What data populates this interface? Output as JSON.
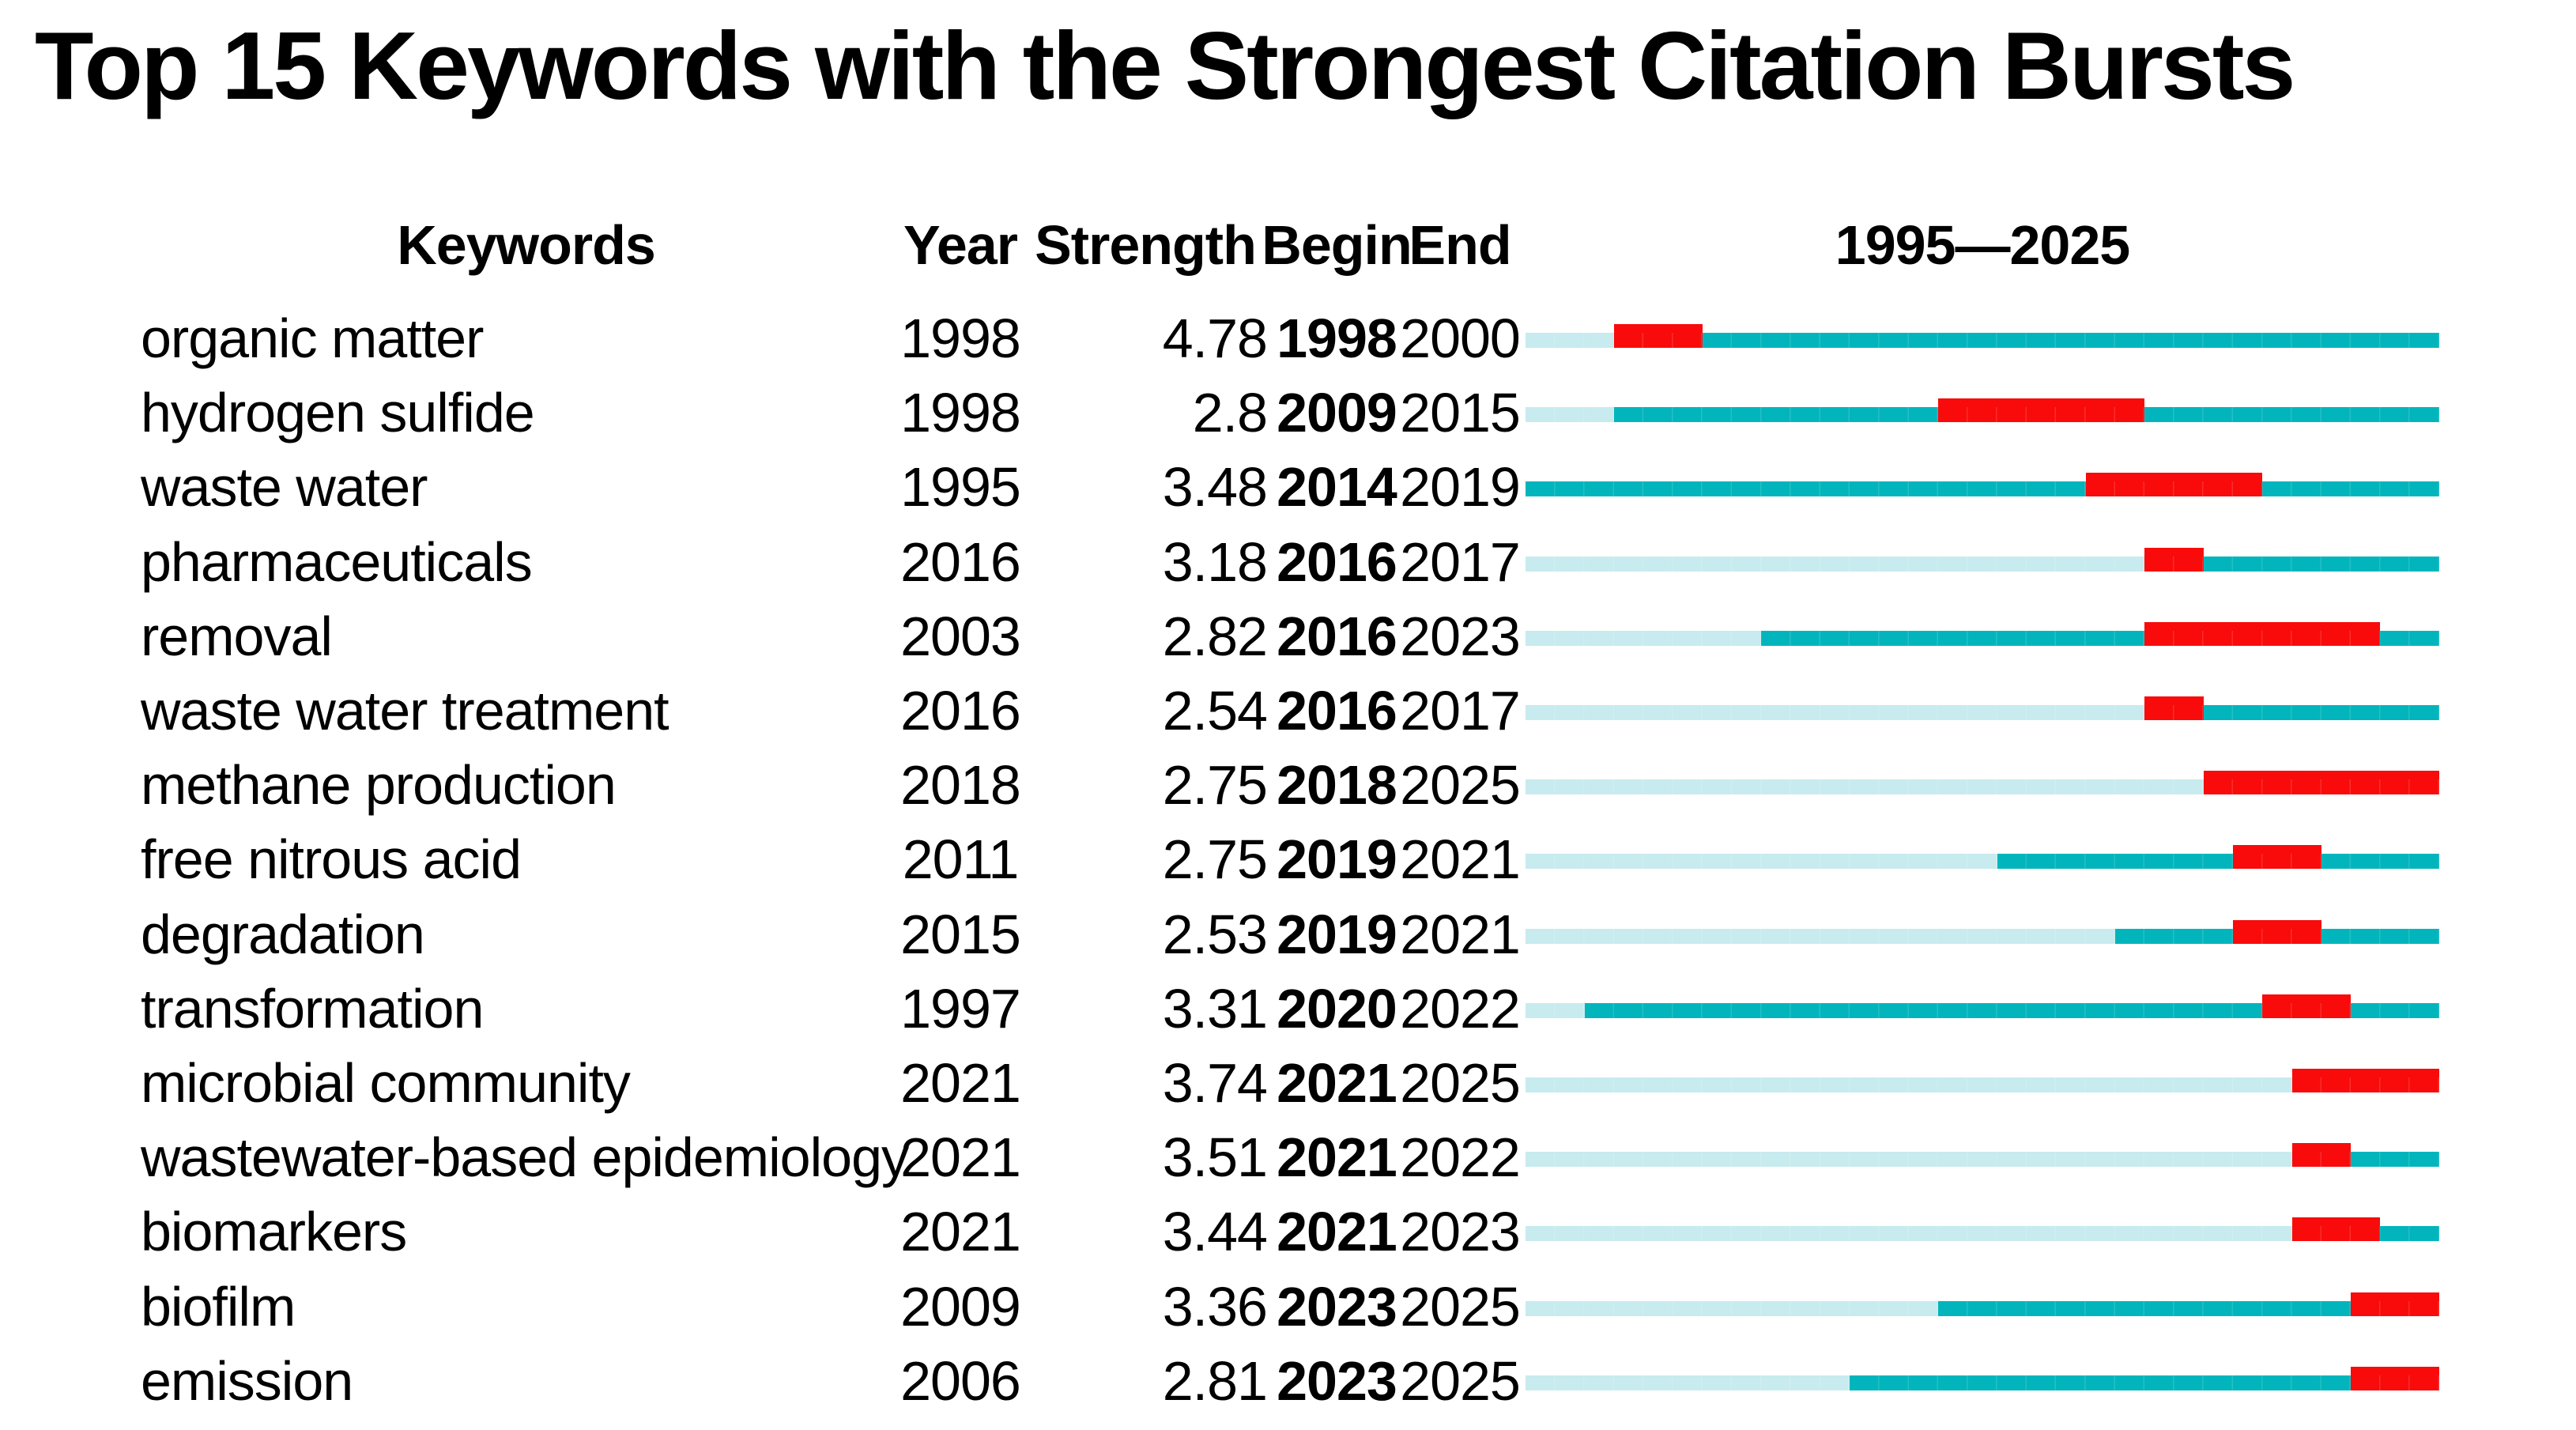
{
  "title": "Top 15 Keywords with the Strongest Citation Bursts",
  "columns": {
    "keyword": "Keywords",
    "year": "Year",
    "strength": "Strength",
    "begin": "Begin",
    "end": "End",
    "timeline": "1995—2025"
  },
  "chart_data": {
    "type": "bar",
    "subtype": "citation-burst-timeline",
    "x_range": [
      1995,
      2025
    ],
    "legend": {
      "pre_appearance_color": "#c7ebee",
      "active_color": "#02b5bc",
      "burst_color": "#f90b0b"
    },
    "rows": [
      {
        "keyword": "organic matter",
        "year": 1998,
        "strength": "4.78",
        "begin": 1998,
        "end": 2000
      },
      {
        "keyword": "hydrogen sulfide",
        "year": 1998,
        "strength": "2.8",
        "begin": 2009,
        "end": 2015
      },
      {
        "keyword": "waste water",
        "year": 1995,
        "strength": "3.48",
        "begin": 2014,
        "end": 2019
      },
      {
        "keyword": "pharmaceuticals",
        "year": 2016,
        "strength": "3.18",
        "begin": 2016,
        "end": 2017
      },
      {
        "keyword": "removal",
        "year": 2003,
        "strength": "2.82",
        "begin": 2016,
        "end": 2023
      },
      {
        "keyword": "waste water treatment",
        "year": 2016,
        "strength": "2.54",
        "begin": 2016,
        "end": 2017
      },
      {
        "keyword": "methane production",
        "year": 2018,
        "strength": "2.75",
        "begin": 2018,
        "end": 2025
      },
      {
        "keyword": "free nitrous acid",
        "year": 2011,
        "strength": "2.75",
        "begin": 2019,
        "end": 2021
      },
      {
        "keyword": "degradation",
        "year": 2015,
        "strength": "2.53",
        "begin": 2019,
        "end": 2021
      },
      {
        "keyword": "transformation",
        "year": 1997,
        "strength": "3.31",
        "begin": 2020,
        "end": 2022
      },
      {
        "keyword": "microbial community",
        "year": 2021,
        "strength": "3.74",
        "begin": 2021,
        "end": 2025
      },
      {
        "keyword": "wastewater-based epidemiology",
        "year": 2021,
        "strength": "3.51",
        "begin": 2021,
        "end": 2022
      },
      {
        "keyword": "biomarkers",
        "year": 2021,
        "strength": "3.44",
        "begin": 2021,
        "end": 2023
      },
      {
        "keyword": "biofilm",
        "year": 2009,
        "strength": "3.36",
        "begin": 2023,
        "end": 2025
      },
      {
        "keyword": "emission",
        "year": 2006,
        "strength": "2.81",
        "begin": 2023,
        "end": 2025
      }
    ]
  }
}
